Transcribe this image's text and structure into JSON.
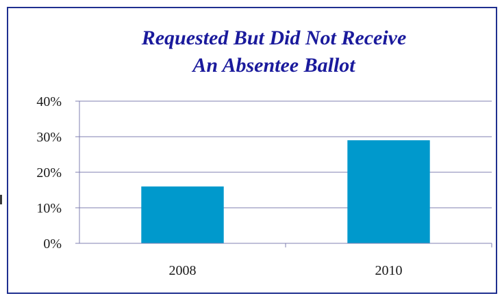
{
  "chart_data": {
    "type": "bar",
    "title": [
      "Requested But Did Not Receive",
      "An Absentee Ballot"
    ],
    "categories": [
      "2008",
      "2010"
    ],
    "values": [
      16,
      29
    ],
    "value_format": "percent",
    "ylim": [
      0,
      40
    ],
    "yticks": [
      "0%",
      "10%",
      "20%",
      "30%",
      "40%"
    ],
    "grid": true,
    "legend": "none",
    "colors": {
      "bar": "#0099cc",
      "title": "#1a1a9c",
      "frame": "#1f2f8f",
      "grid": "#7f7fb0"
    }
  }
}
